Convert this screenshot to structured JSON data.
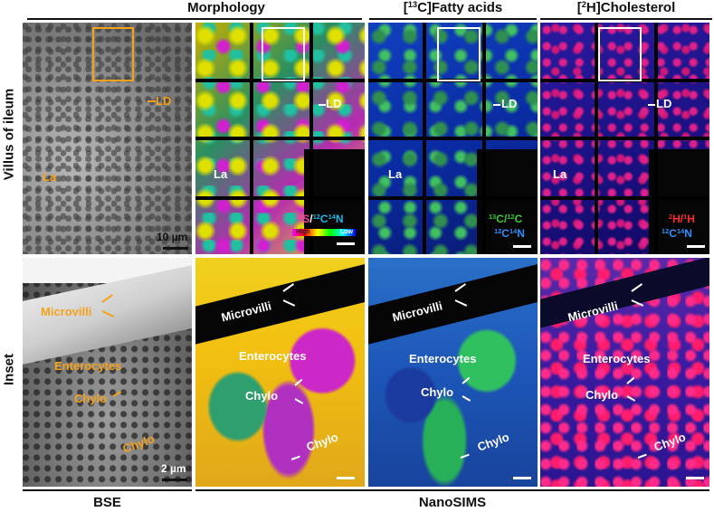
{
  "headers": {
    "morphology": "Morphology",
    "fatty_acids": "[13C]Fatty acids",
    "cholesterol": "[2H]Cholesterol",
    "bse": "BSE",
    "nanosims": "NanoSIMS"
  },
  "rows": {
    "top": "Villus of ileum",
    "bottom": "Inset"
  },
  "labels": {
    "ld": "LD",
    "la": "La",
    "microvilli": "Microvilli",
    "enterocytes": "Enterocytes",
    "chylo": "Chylo"
  },
  "scalebars": {
    "top": "10 µm",
    "bottom": "2 µm"
  },
  "ratio_labels": {
    "morph_ratio": "32S/12C14N",
    "cbar_high": "High",
    "cbar_low": "Low",
    "fa_ratio_1": "13C/12C",
    "fa_ratio_2": "12C14N",
    "ch_ratio_1": "2H/1H",
    "ch_ratio_2": "12C14N"
  },
  "colors": {
    "annot_bse": "#f5a21b",
    "inset_box_bse": "#f5a21b",
    "inset_box_sims": "#ffffff",
    "morph_ratio_s": "#ff3ea8",
    "morph_ratio_cn": "#1fb8e8",
    "fa_green": "#33cc33",
    "fa_blue": "#2f8fff",
    "ch_red": "#ff2a2a",
    "ch_blue": "#2f8fff"
  }
}
